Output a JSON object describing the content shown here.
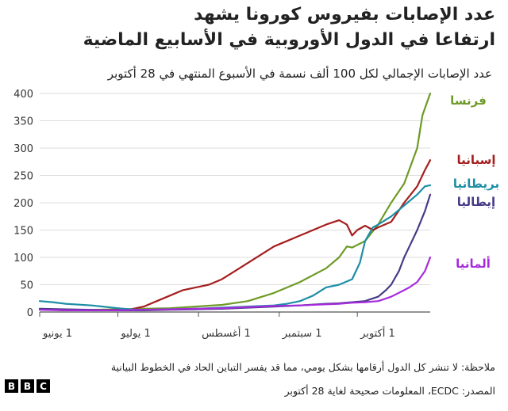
{
  "title_line1": "عدد الإصابات بفيروس كورونا يشهد",
  "title_line2": "ارتفاعا في الدول الأوروبية في الأسابيع الماضية",
  "subtitle": "عدد الإصابات الإجمالي لكل 100 ألف نسمة في الأسبوع المنتهي في 28 أكتوبر",
  "note": "ملاحظة: لا تنشر كل الدول أرقامها بشكل يومي، مما قد يفسر التباين الحاد في الخطوط البيانية",
  "source": "المصدر: ECDC، المعلومات صحيحة لغاية 28 أكتوبر",
  "logo_letters": [
    "B",
    "B",
    "C"
  ],
  "chart_data": {
    "type": "line",
    "ylim": [
      0,
      400
    ],
    "yticks": [
      0,
      50,
      100,
      150,
      200,
      250,
      300,
      350,
      400
    ],
    "xlim": [
      0,
      150
    ],
    "xticks": [
      {
        "x": 0,
        "label": "1 يونيو"
      },
      {
        "x": 30,
        "label": "1 يوليو"
      },
      {
        "x": 61,
        "label": "1 أغسطس"
      },
      {
        "x": 92,
        "label": "1 سبتمبر"
      },
      {
        "x": 122,
        "label": "1 أكتوبر"
      }
    ],
    "grid": true,
    "series": [
      {
        "name": "فرنسا",
        "color": "#6e9a26",
        "x": [
          0,
          10,
          20,
          30,
          40,
          50,
          60,
          70,
          80,
          90,
          100,
          110,
          115,
          118,
          120,
          125,
          130,
          135,
          140,
          145,
          147,
          150
        ],
        "y": [
          5,
          4,
          4,
          5,
          6,
          7,
          10,
          13,
          20,
          35,
          55,
          80,
          100,
          120,
          118,
          130,
          160,
          200,
          235,
          300,
          360,
          400
        ]
      },
      {
        "name": "إسبانيا",
        "color": "#a51e1e",
        "x": [
          0,
          10,
          20,
          30,
          35,
          40,
          45,
          50,
          55,
          60,
          65,
          70,
          75,
          80,
          85,
          90,
          95,
          100,
          105,
          110,
          115,
          118,
          120,
          122,
          125,
          128,
          130,
          135,
          140,
          145,
          148,
          150
        ],
        "y": [
          5,
          3,
          3,
          4,
          5,
          10,
          20,
          30,
          40,
          45,
          50,
          60,
          75,
          90,
          105,
          120,
          130,
          140,
          150,
          160,
          168,
          160,
          140,
          150,
          158,
          150,
          155,
          165,
          200,
          230,
          260,
          278
        ]
      },
      {
        "name": "بريطانيا",
        "color": "#1d8ea5",
        "x": [
          0,
          5,
          10,
          20,
          30,
          35,
          40,
          50,
          60,
          70,
          80,
          90,
          95,
          100,
          105,
          110,
          115,
          120,
          123,
          125,
          128,
          130,
          135,
          140,
          145,
          148,
          150
        ],
        "y": [
          20,
          18,
          15,
          12,
          7,
          5,
          4,
          5,
          6,
          8,
          10,
          12,
          15,
          20,
          30,
          45,
          50,
          60,
          90,
          130,
          155,
          160,
          175,
          195,
          215,
          230,
          232
        ]
      },
      {
        "name": "إيطاليا",
        "color": "#473b86",
        "x": [
          0,
          10,
          20,
          30,
          40,
          50,
          60,
          70,
          80,
          90,
          100,
          110,
          115,
          120,
          125,
          128,
          130,
          133,
          135,
          138,
          140,
          142,
          145,
          148,
          150
        ],
        "y": [
          6,
          5,
          4,
          3,
          3,
          4,
          5,
          6,
          8,
          10,
          12,
          15,
          16,
          18,
          20,
          25,
          28,
          40,
          50,
          75,
          100,
          120,
          150,
          185,
          215
        ]
      },
      {
        "name": "ألمانيا",
        "color": "#a72bdc",
        "x": [
          0,
          10,
          20,
          30,
          40,
          50,
          60,
          70,
          80,
          90,
          100,
          110,
          115,
          120,
          125,
          130,
          132,
          135,
          140,
          142,
          145,
          148,
          150
        ],
        "y": [
          4,
          3,
          3,
          3,
          4,
          5,
          6,
          7,
          9,
          11,
          12,
          14,
          15,
          17,
          18,
          20,
          23,
          28,
          40,
          45,
          55,
          75,
          100
        ]
      }
    ]
  }
}
